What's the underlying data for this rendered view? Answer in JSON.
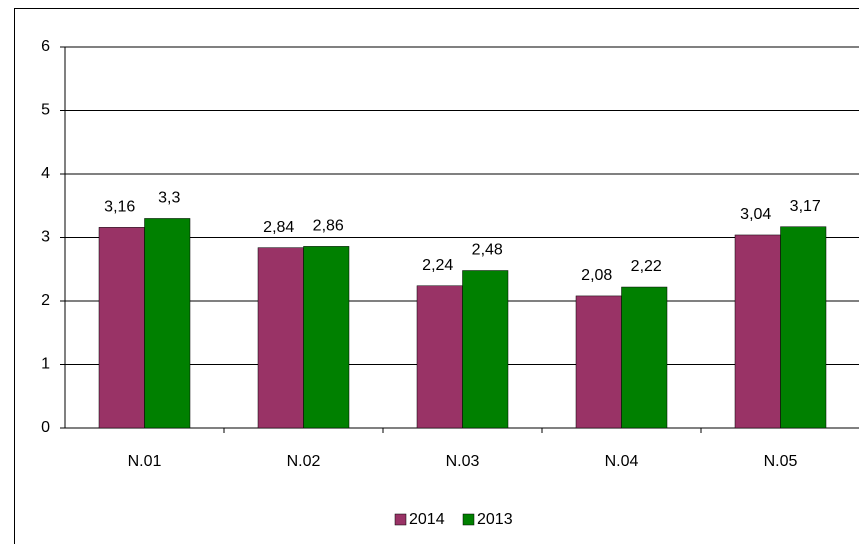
{
  "chart_data": {
    "type": "bar",
    "categories": [
      "N.01",
      "N.02",
      "N.03",
      "N.04",
      "N.05"
    ],
    "series": [
      {
        "name": "2014",
        "color": "#993366",
        "values": [
          3.16,
          2.84,
          2.24,
          2.08,
          3.04
        ],
        "value_labels": [
          "3,16",
          "2,84",
          "2,24",
          "2,08",
          "3,04"
        ]
      },
      {
        "name": "2013",
        "color": "#008000",
        "values": [
          3.3,
          2.86,
          2.48,
          2.22,
          3.17
        ],
        "value_labels": [
          "3,3",
          "2,86",
          "2,48",
          "2,22",
          "3,17"
        ]
      }
    ],
    "ylim": [
      0,
      6
    ],
    "yticks": [
      0,
      1,
      2,
      3,
      4,
      5,
      6
    ],
    "grid": true,
    "legend": "bottom"
  }
}
